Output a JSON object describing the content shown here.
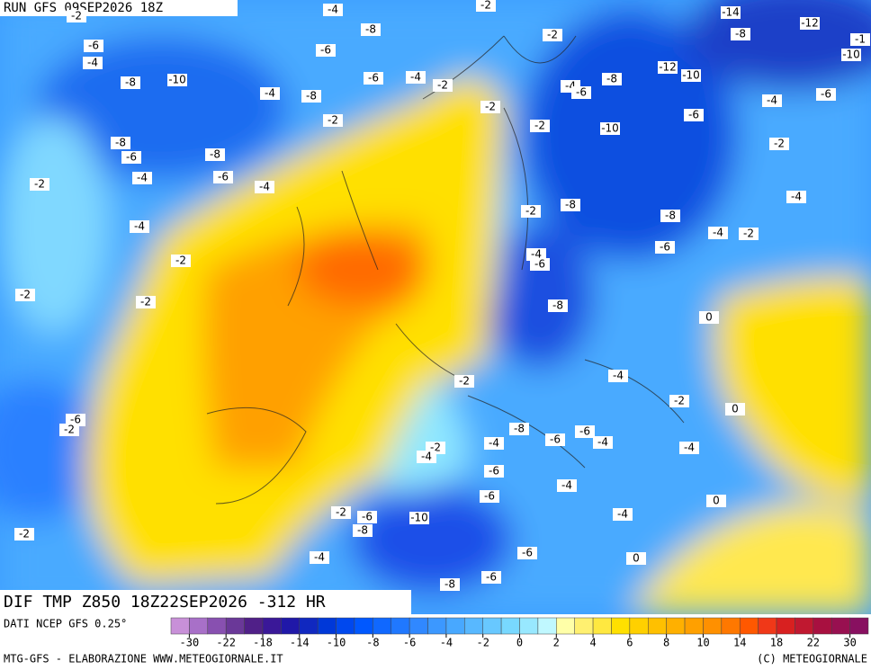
{
  "header": {
    "title": "RUN GFS 09SEP2026 18Z"
  },
  "map": {
    "title": "DIF TMP Z850 18Z22SEP2026 -312 HR",
    "contour_labels": [
      -2,
      -4,
      -2,
      -14,
      -6,
      -8,
      -2,
      -8,
      -12,
      -1,
      -4,
      -6,
      -10,
      -8,
      -10,
      -6,
      -4,
      -2,
      -12,
      -10,
      -4,
      -6,
      -8,
      -4,
      -8,
      -6,
      -4,
      -2,
      -6,
      -2,
      -2,
      -10,
      -8,
      -6,
      -8,
      -2,
      -2,
      -4,
      -6,
      -4,
      -4,
      -2,
      -8,
      -8,
      -4,
      -4,
      -2,
      -6,
      -4,
      -6,
      -2,
      -2,
      -2,
      -8,
      0,
      -4,
      -2,
      -2,
      0,
      -6,
      -2,
      -8,
      -6,
      -4,
      -6,
      -4,
      -2,
      -4,
      -4,
      -6,
      -4,
      -6,
      0,
      -2,
      -6,
      -10,
      -8,
      -4,
      -2,
      -4,
      -6,
      0,
      -6,
      -8
    ]
  },
  "colorbar": {
    "colors": [
      "#c890d8",
      "#a870c8",
      "#8850b0",
      "#6a3898",
      "#502088",
      "#3a1898",
      "#2018a8",
      "#1028c0",
      "#0038d8",
      "#0048ee",
      "#0058ff",
      "#1068ff",
      "#2078ff",
      "#3088ff",
      "#3c98ff",
      "#48a8ff",
      "#58b8ff",
      "#68c8ff",
      "#78d8ff",
      "#98e8ff",
      "#c0f8ff",
      "#ffffa8",
      "#fff070",
      "#ffe840",
      "#ffe000",
      "#ffd000",
      "#ffc000",
      "#ffb000",
      "#ffa000",
      "#ff9000",
      "#ff7800",
      "#ff5800",
      "#f03818",
      "#d82020",
      "#c01830",
      "#a81040",
      "#981050",
      "#881060"
    ],
    "ticks": [
      -30,
      -22,
      -18,
      -14,
      -10,
      -8,
      -6,
      -4,
      -2,
      0,
      2,
      4,
      6,
      8,
      10,
      14,
      18,
      22,
      30
    ]
  },
  "footer": {
    "source": "DATI NCEP GFS 0.25°",
    "credit": "MTG-GFS - ELABORAZIONE WWW.METEOGIORNALE.IT",
    "copyright": "(C) METEOGIORNALE"
  }
}
